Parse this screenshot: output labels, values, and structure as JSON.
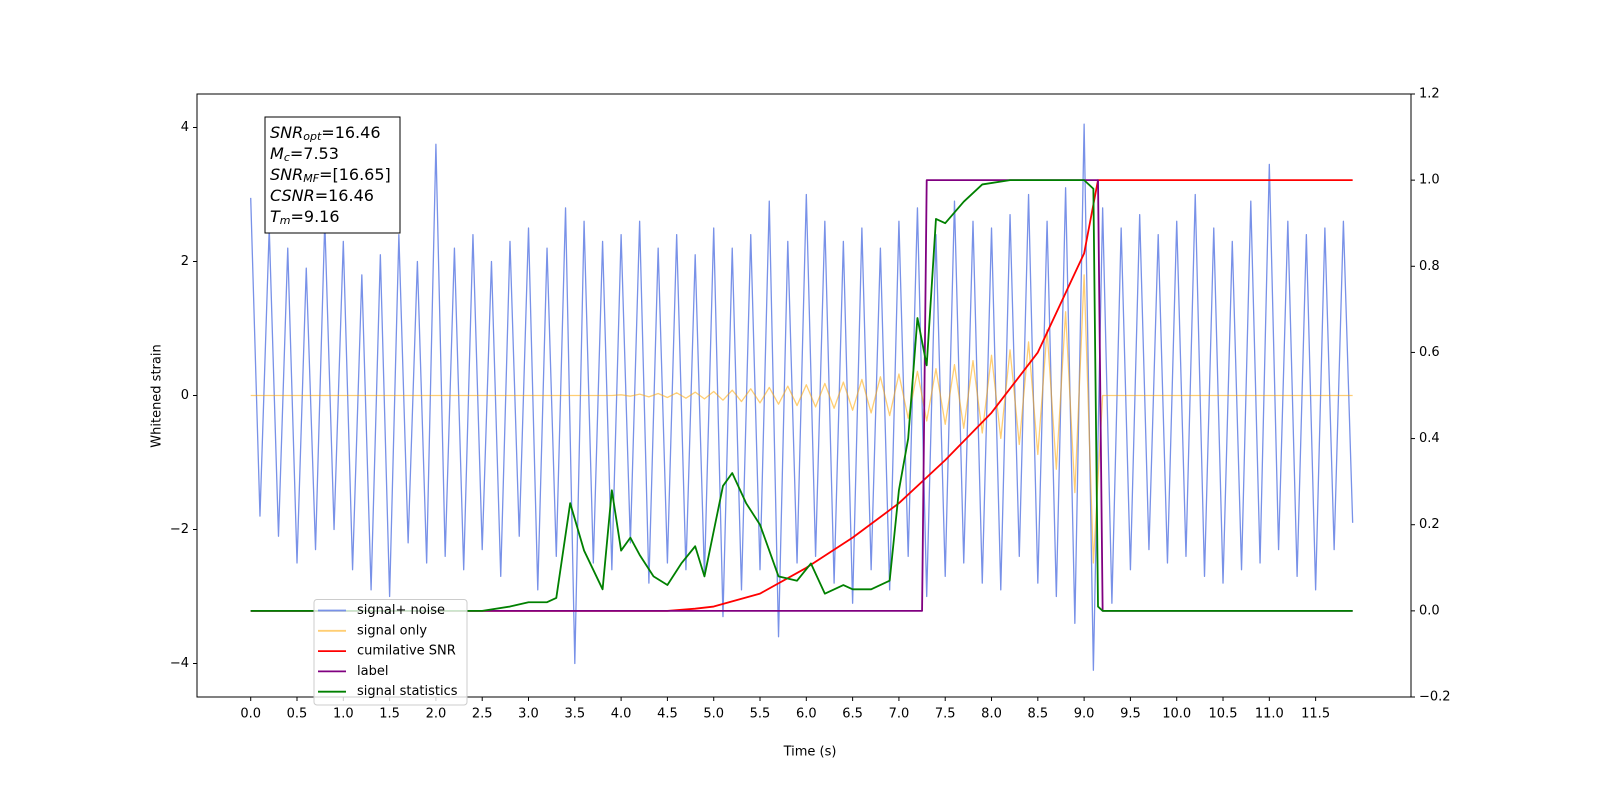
{
  "chart_data": {
    "type": "line",
    "xlabel": "Time (s)",
    "ylabel": "Whitened strain",
    "xlim": [
      -0.58,
      12.53
    ],
    "ylim": [
      -4.5,
      4.5
    ],
    "y2lim": [
      -0.2,
      1.2
    ],
    "xticks": [
      {
        "value": 0,
        "label": "0.0"
      },
      0.5,
      {
        "value": 1,
        "label": "1.0"
      },
      1.5,
      {
        "value": 2,
        "label": "2.0"
      },
      2.5,
      {
        "value": 3,
        "label": "3.0"
      },
      3.5,
      {
        "value": 4,
        "label": "4.0"
      },
      4.5,
      {
        "value": 5,
        "label": "5.0"
      },
      5.5,
      {
        "value": 6,
        "label": "6.0"
      },
      6.5,
      {
        "value": 7,
        "label": "7.0"
      },
      7.5,
      {
        "value": 8,
        "label": "8.0"
      },
      8.5,
      {
        "value": 9,
        "label": "9.0"
      },
      9.5,
      {
        "value": 10,
        "label": "10.0"
      },
      10.5,
      {
        "value": 11,
        "label": "11.0"
      },
      11.5
    ],
    "yticks": [
      {
        "value": -4,
        "label": "−4"
      },
      {
        "value": -2,
        "label": "−2"
      },
      0,
      2,
      4
    ],
    "y2ticks": [
      {
        "value": -0.2,
        "label": "−0.2"
      },
      {
        "value": 0,
        "label": "0.0"
      },
      0.2,
      0.4,
      0.6,
      0.8,
      {
        "value": 1,
        "label": "1.0"
      },
      1.2
    ],
    "legend": "lower left",
    "annotation": [
      {
        "symbol": "SNR",
        "sub": "opt",
        "text": "=16.46"
      },
      {
        "symbol": "M",
        "sub": "c",
        "text": "=7.53"
      },
      {
        "symbol": "SNR",
        "sub": "MF",
        "text": "=[16.65]"
      },
      {
        "symbol": "CSNR",
        "text": "=16.46"
      },
      {
        "symbol": "T",
        "sub": "m",
        "text": "=9.16"
      }
    ],
    "x": [
      0,
      0.1,
      0.2,
      0.3,
      0.4,
      0.5,
      0.6,
      0.7,
      0.8,
      0.9,
      1,
      1.1,
      1.2,
      1.3,
      1.4,
      1.5,
      1.6,
      1.7,
      1.8,
      1.9,
      2,
      2.1,
      2.2,
      2.3,
      2.4,
      2.5,
      2.6,
      2.7,
      2.8,
      2.9,
      3,
      3.1,
      3.2,
      3.3,
      3.4,
      3.5,
      3.6,
      3.7,
      3.8,
      3.9,
      4,
      4.1,
      4.2,
      4.3,
      4.4,
      4.5,
      4.6,
      4.7,
      4.8,
      4.9,
      5,
      5.1,
      5.2,
      5.3,
      5.4,
      5.5,
      5.6,
      5.7,
      5.8,
      5.9,
      6,
      6.1,
      6.2,
      6.3,
      6.4,
      6.5,
      6.6,
      6.7,
      6.8,
      6.9,
      7,
      7.1,
      7.2,
      7.3,
      7.4,
      7.5,
      7.6,
      7.7,
      7.8,
      7.9,
      8,
      8.1,
      8.2,
      8.3,
      8.4,
      8.5,
      8.6,
      8.7,
      8.8,
      8.9,
      9,
      9.1,
      9.2,
      9.3,
      9.4,
      9.5,
      9.6,
      9.7,
      9.8,
      9.9,
      10,
      10.1,
      10.2,
      10.3,
      10.4,
      10.5,
      10.6,
      10.7,
      10.8,
      10.9,
      11,
      11.1,
      11.2,
      11.3,
      11.4,
      11.5,
      11.6,
      11.7,
      11.8,
      11.9
    ],
    "series": [
      {
        "name": "signal+ noise",
        "color": "#7891e8",
        "alpha": 1,
        "values": [
          2.95,
          -1.8,
          2.5,
          -2.1,
          2.2,
          -2.5,
          1.9,
          -2.3,
          2.6,
          -2.0,
          2.3,
          -2.6,
          1.8,
          -2.9,
          2.1,
          -3.0,
          2.4,
          -2.2,
          2.0,
          -2.5,
          3.75,
          -2.4,
          2.2,
          -2.6,
          2.4,
          -2.3,
          2.0,
          -2.7,
          2.3,
          -2.1,
          2.5,
          -2.9,
          2.2,
          -2.4,
          2.8,
          -4.0,
          2.6,
          -2.5,
          2.3,
          -2.6,
          2.4,
          -2.2,
          2.6,
          -2.8,
          2.2,
          -2.5,
          2.4,
          -2.6,
          2.1,
          -2.7,
          2.5,
          -3.3,
          2.2,
          -2.9,
          2.4,
          -2.6,
          2.9,
          -3.6,
          2.3,
          -2.5,
          3.0,
          -2.4,
          2.6,
          -2.8,
          2.3,
          -3.1,
          2.5,
          -2.6,
          2.2,
          -2.9,
          2.6,
          -2.4,
          2.8,
          -3.0,
          2.4,
          -2.7,
          2.9,
          -2.5,
          2.6,
          -2.8,
          2.5,
          -2.9,
          2.7,
          -2.4,
          3.0,
          -2.8,
          2.6,
          -3.0,
          3.1,
          -3.4,
          4.05,
          -4.1,
          2.8,
          -3.1,
          2.5,
          -2.6,
          2.7,
          -2.3,
          2.4,
          -2.5,
          2.6,
          -2.4,
          3.0,
          -2.7,
          2.5,
          -2.8,
          2.3,
          -2.6,
          2.9,
          -2.5,
          3.45,
          -2.3,
          2.6,
          -2.7,
          2.4,
          -2.9,
          2.5,
          -2.3,
          2.6,
          -1.9
        ]
      },
      {
        "name": "signal only",
        "color": "#ffa500",
        "alpha": 0.55,
        "values": [
          0,
          0,
          0,
          0,
          0,
          0,
          0,
          0,
          0,
          0,
          0,
          0,
          0,
          0,
          0,
          0,
          0,
          0,
          0,
          0,
          0,
          0,
          0,
          0,
          0,
          0,
          0,
          0,
          0,
          0,
          0,
          0,
          0,
          0,
          0,
          0,
          0,
          0,
          0,
          0,
          0.01,
          -0.01,
          0.02,
          -0.02,
          0.03,
          -0.03,
          0.04,
          -0.04,
          0.05,
          -0.05,
          0.06,
          -0.07,
          0.08,
          -0.09,
          0.1,
          -0.11,
          0.12,
          -0.13,
          0.14,
          -0.15,
          0.16,
          -0.17,
          0.18,
          -0.19,
          0.2,
          -0.22,
          0.24,
          -0.26,
          0.28,
          -0.3,
          0.32,
          -0.34,
          0.36,
          -0.38,
          0.4,
          -0.43,
          0.46,
          -0.49,
          0.52,
          -0.56,
          0.6,
          -0.64,
          0.68,
          -0.73,
          0.8,
          -0.88,
          0.98,
          -1.1,
          1.25,
          -1.45,
          1.8,
          -2.5,
          0,
          0,
          0,
          0,
          0,
          0,
          0,
          0,
          0,
          0,
          0,
          0,
          0,
          0,
          0,
          0,
          0,
          0,
          0,
          0,
          0,
          0,
          0,
          0,
          0,
          0,
          0,
          0
        ]
      },
      {
        "name": "cumilative SNR",
        "color": "#ff0000",
        "axis": "y2",
        "x": [
          0,
          4.5,
          4.8,
          5.0,
          5.5,
          6.0,
          6.5,
          7.0,
          7.5,
          8.0,
          8.5,
          9.0,
          9.15,
          9.2,
          11.9
        ],
        "values": [
          0,
          0,
          0.005,
          0.01,
          0.04,
          0.1,
          0.17,
          0.25,
          0.35,
          0.46,
          0.6,
          0.83,
          1.0,
          1.0,
          1.0
        ]
      },
      {
        "name": "label",
        "color": "#800080",
        "axis": "y2",
        "x": [
          0,
          7.25,
          7.3,
          9.15,
          9.2,
          11.9
        ],
        "values": [
          0,
          0,
          1,
          1,
          0,
          0
        ]
      },
      {
        "name": "signal statistics",
        "color": "#008000",
        "axis": "y2",
        "x": [
          0,
          2.4,
          2.5,
          2.8,
          3.0,
          3.2,
          3.3,
          3.45,
          3.6,
          3.8,
          3.9,
          4.0,
          4.1,
          4.2,
          4.35,
          4.5,
          4.65,
          4.8,
          4.9,
          5.1,
          5.2,
          5.35,
          5.5,
          5.7,
          5.9,
          6.05,
          6.2,
          6.4,
          6.5,
          6.7,
          6.9,
          7.0,
          7.1,
          7.2,
          7.3,
          7.4,
          7.5,
          7.7,
          7.9,
          8.2,
          9.0,
          9.1,
          9.15,
          9.2,
          11.9
        ],
        "values": [
          0,
          0,
          0,
          0.01,
          0.02,
          0.02,
          0.03,
          0.25,
          0.14,
          0.05,
          0.28,
          0.14,
          0.17,
          0.13,
          0.08,
          0.06,
          0.11,
          0.15,
          0.08,
          0.29,
          0.32,
          0.25,
          0.2,
          0.08,
          0.07,
          0.11,
          0.04,
          0.06,
          0.05,
          0.05,
          0.07,
          0.28,
          0.4,
          0.68,
          0.57,
          0.91,
          0.9,
          0.95,
          0.99,
          1.0,
          1.0,
          0.98,
          0.01,
          0,
          0
        ]
      }
    ]
  }
}
